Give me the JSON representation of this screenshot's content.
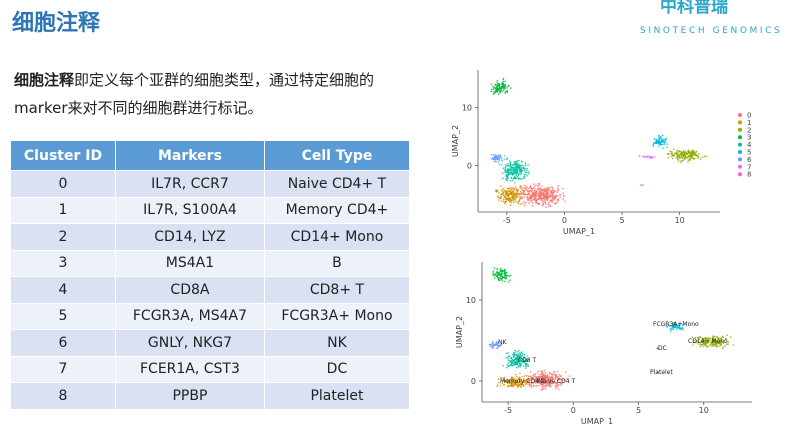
{
  "header": {
    "title": "细胞注释",
    "logo": "中科普瑞",
    "logo_en": "SINOTECH GENOMICS"
  },
  "intro": {
    "bold": "细胞注释",
    "text": "即定义每个亚群的细胞类型，通过特定细胞的marker来对不同的细胞群进行标记。"
  },
  "table": {
    "columns": [
      "Cluster ID",
      "Markers",
      "Cell Type"
    ],
    "rows": [
      [
        "0",
        "IL7R, CCR7",
        "Naive CD4+ T"
      ],
      [
        "1",
        "IL7R, S100A4",
        "Memory CD4+"
      ],
      [
        "2",
        "CD14, LYZ",
        "CD14+ Mono"
      ],
      [
        "3",
        "MS4A1",
        "B"
      ],
      [
        "4",
        "CD8A",
        "CD8+ T"
      ],
      [
        "5",
        "FCGR3A, MS4A7",
        "FCGR3A+ Mono"
      ],
      [
        "6",
        "GNLY, NKG7",
        "NK"
      ],
      [
        "7",
        "FCER1A, CST3",
        "DC"
      ],
      [
        "8",
        "PPBP",
        "Platelet"
      ]
    ]
  },
  "plots": [
    {
      "x_label": "UMAP_1",
      "y_label": "UMAP_2",
      "xlim": [
        -7.5,
        13.5
      ],
      "ylim": [
        -8,
        16.5
      ],
      "xticks": [
        -5,
        0,
        5,
        10
      ],
      "yticks": [
        0,
        10
      ],
      "legend": [
        {
          "label": "0",
          "color": "#F8766D"
        },
        {
          "label": "1",
          "color": "#D39200"
        },
        {
          "label": "2",
          "color": "#93AA00"
        },
        {
          "label": "3",
          "color": "#00BA38"
        },
        {
          "label": "4",
          "color": "#00C19F"
        },
        {
          "label": "5",
          "color": "#00B9E3"
        },
        {
          "label": "6",
          "color": "#619CFF"
        },
        {
          "label": "7",
          "color": "#DB72FB"
        },
        {
          "label": "8",
          "color": "#FF61C3"
        }
      ]
    },
    {
      "x_label": "UMAP_1",
      "y_label": "UMAP_2",
      "xlim": [
        -7,
        13.7
      ],
      "ylim": [
        -2.6,
        14.7
      ],
      "xticks": [
        -5,
        0,
        5,
        10
      ],
      "yticks": [
        0,
        10
      ],
      "annotations": [
        "NK",
        "FCGR3A+Mono",
        "CD14+ Mono",
        "DC",
        "CD8 T",
        "Memory CD4 T",
        "Naive CD4 T",
        "Platelet"
      ]
    }
  ]
}
